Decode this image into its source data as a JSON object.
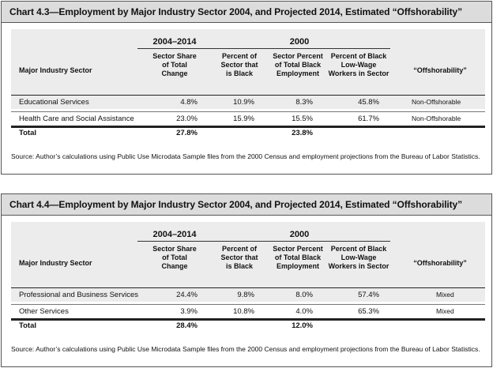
{
  "tables": [
    {
      "title": "Chart 4.3—Employment by Major Industry Sector 2004, and Projected 2014, Estimated “Offshorability”",
      "group_2004": "2004–2014",
      "group_2000": "2000",
      "headers": {
        "sector": "Major Industry Sector",
        "share": [
          "Sector Share",
          "of Total",
          "Change"
        ],
        "pct_black": [
          "Percent of",
          "Sector that",
          "is Black"
        ],
        "pct_total_black": [
          "Sector Percent",
          "of Total Black",
          "Employment"
        ],
        "pct_lowwage": [
          "Percent of Black",
          "Low-Wage",
          "Workers in Sector"
        ],
        "offshore": "“Offshorability”"
      },
      "rows": [
        {
          "sector": "Educational Services",
          "share": "4.8%",
          "pct_black": "10.9%",
          "pct_total_black": "8.3%",
          "pct_lowwage": "45.8%",
          "offshore": "Non-Offshorable"
        },
        {
          "sector": "Health Care and Social Assistance",
          "share": "23.0%",
          "pct_black": "15.9%",
          "pct_total_black": "15.5%",
          "pct_lowwage": "61.7%",
          "offshore": "Non-Offshorable"
        }
      ],
      "total": {
        "label": "Total",
        "share": "27.8%",
        "pct_total_black": "23.8%"
      },
      "source": "Source: Author’s calculations using Public Use Microdata Sample files from the 2000 Census and employment projections from the Bureau of Labor Statistics."
    },
    {
      "title": "Chart 4.4—Employment by Major Industry Sector 2004, and Projected 2014, Estimated “Offshorability”",
      "group_2004": "2004–2014",
      "group_2000": "2000",
      "headers": {
        "sector": "Major Industry Sector",
        "share": [
          "Sector Share",
          "of Total",
          "Change"
        ],
        "pct_black": [
          "Percent of",
          "Sector that",
          "is Black"
        ],
        "pct_total_black": [
          "Sector Percent",
          "of Total Black",
          "Employment"
        ],
        "pct_lowwage": [
          "Percent of Black",
          "Low-Wage",
          "Workers in Sector"
        ],
        "offshore": "“Offshorability”"
      },
      "rows": [
        {
          "sector": "Professional and Business Services",
          "share": "24.4%",
          "pct_black": "9.8%",
          "pct_total_black": "8.0%",
          "pct_lowwage": "57.4%",
          "offshore": "Mixed"
        },
        {
          "sector": "Other Services",
          "share": "3.9%",
          "pct_black": "10.8%",
          "pct_total_black": "4.0%",
          "pct_lowwage": "65.3%",
          "offshore": "Mixed"
        }
      ],
      "total": {
        "label": "Total",
        "share": "28.4%",
        "pct_total_black": "12.0%"
      },
      "source": "Source: Author’s calculations using Public Use Microdata Sample files from the 2000 Census and employment projections from the Bureau of Labor Statistics."
    }
  ]
}
